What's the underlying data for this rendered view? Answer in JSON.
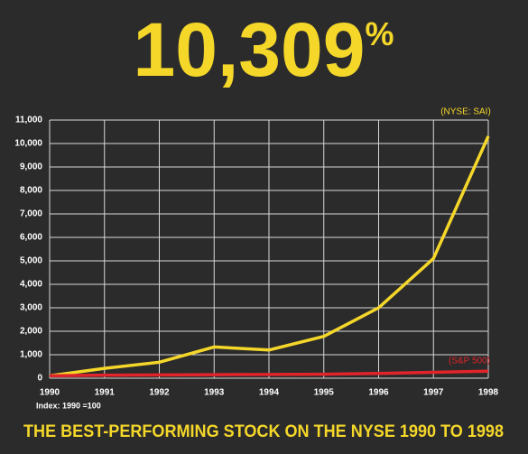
{
  "chart_data": {
    "type": "line",
    "headline": "10,309",
    "headline_unit": "%",
    "title": "THE BEST-PERFORMING STOCK ON THE NYSE 1990 TO 1998",
    "note": "Index: 1990 =100",
    "x": [
      1990,
      1991,
      1992,
      1993,
      1994,
      1995,
      1996,
      1997,
      1998
    ],
    "series": [
      {
        "name": "(NYSE: SAI)",
        "color": "#f5d72a",
        "values": [
          100,
          420,
          680,
          1330,
          1200,
          1780,
          3000,
          5100,
          10309
        ]
      },
      {
        "name": "(S&P 500)",
        "color": "#e0242a",
        "values": [
          100,
          130,
          140,
          150,
          160,
          170,
          200,
          250,
          300
        ]
      }
    ],
    "xlim": [
      1990,
      1998
    ],
    "xticks": [
      1990,
      1991,
      1992,
      1993,
      1994,
      1995,
      1996,
      1997,
      1998
    ],
    "ylim": [
      0,
      11000
    ],
    "yticks": [
      0,
      {
        "value": 1000,
        "label": "1,000"
      },
      {
        "value": 2000,
        "label": "2,000"
      },
      {
        "value": 3000,
        "label": "3,000"
      },
      {
        "value": 4000,
        "label": "4,000"
      },
      {
        "value": 5000,
        "label": "5,000"
      },
      {
        "value": 6000,
        "label": "6,000"
      },
      {
        "value": 7000,
        "label": "7,000"
      },
      {
        "value": 8000,
        "label": "8,000"
      },
      {
        "value": 9000,
        "label": "9,000"
      },
      {
        "value": 10000,
        "label": "10,000"
      },
      {
        "value": 11000,
        "label": "11,000"
      }
    ],
    "grid": true
  }
}
